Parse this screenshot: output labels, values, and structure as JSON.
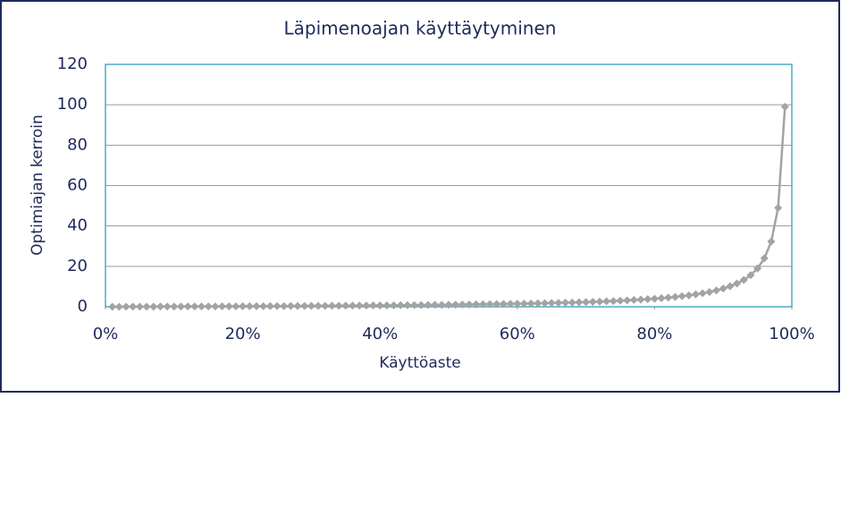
{
  "chart_data": {
    "type": "line",
    "title": "Läpimenoajan käyttäytyminen",
    "x_label": "Käyttöaste",
    "y_label": "Optimiajan kerroin",
    "x": [
      1,
      2,
      3,
      4,
      5,
      6,
      7,
      8,
      9,
      10,
      11,
      12,
      13,
      14,
      15,
      16,
      17,
      18,
      19,
      20,
      21,
      22,
      23,
      24,
      25,
      26,
      27,
      28,
      29,
      30,
      31,
      32,
      33,
      34,
      35,
      36,
      37,
      38,
      39,
      40,
      41,
      42,
      43,
      44,
      45,
      46,
      47,
      48,
      49,
      50,
      51,
      52,
      53,
      54,
      55,
      56,
      57,
      58,
      59,
      60,
      61,
      62,
      63,
      64,
      65,
      66,
      67,
      68,
      69,
      70,
      71,
      72,
      73,
      74,
      75,
      76,
      77,
      78,
      79,
      80,
      81,
      82,
      83,
      84,
      85,
      86,
      87,
      88,
      89,
      90,
      91,
      92,
      93,
      94,
      95,
      96,
      97,
      98,
      99
    ],
    "values": [
      0.01,
      0.02,
      0.03,
      0.04,
      0.05,
      0.06,
      0.08,
      0.09,
      0.1,
      0.11,
      0.12,
      0.14,
      0.15,
      0.16,
      0.18,
      0.19,
      0.2,
      0.22,
      0.23,
      0.25,
      0.27,
      0.28,
      0.3,
      0.32,
      0.33,
      0.35,
      0.37,
      0.39,
      0.41,
      0.43,
      0.45,
      0.47,
      0.49,
      0.52,
      0.54,
      0.56,
      0.59,
      0.61,
      0.64,
      0.67,
      0.69,
      0.72,
      0.75,
      0.79,
      0.82,
      0.85,
      0.89,
      0.92,
      0.96,
      1,
      1.04,
      1.08,
      1.13,
      1.17,
      1.22,
      1.27,
      1.33,
      1.38,
      1.44,
      1.5,
      1.56,
      1.63,
      1.7,
      1.78,
      1.86,
      1.94,
      2.03,
      2.13,
      2.23,
      2.33,
      2.45,
      2.57,
      2.7,
      2.85,
      3,
      3.17,
      3.35,
      3.55,
      3.76,
      4,
      4.26,
      4.56,
      4.88,
      5.25,
      5.67,
      6.14,
      6.69,
      7.33,
      8.09,
      9,
      10.11,
      11.5,
      13.29,
      15.67,
      19,
      24,
      32.33,
      49,
      99
    ],
    "color": "#a3a3a3",
    "marker": "diamond",
    "xlim": [
      0,
      100
    ],
    "xticks": [
      {
        "value": 0,
        "label": "0%"
      },
      {
        "value": 20,
        "label": "20%"
      },
      {
        "value": 40,
        "label": "40%"
      },
      {
        "value": 60,
        "label": "60%"
      },
      {
        "value": 80,
        "label": "80%"
      },
      {
        "value": 100,
        "label": "100%"
      }
    ],
    "ylim": [
      0,
      120
    ],
    "yticks": [
      0,
      20,
      40,
      60,
      80,
      100,
      120
    ],
    "grid": true
  }
}
